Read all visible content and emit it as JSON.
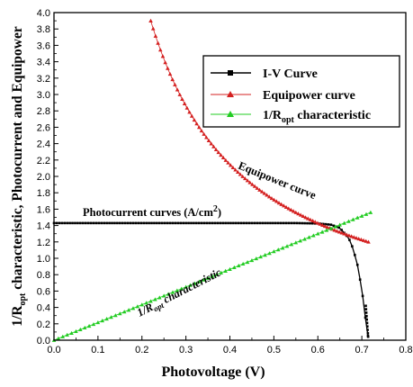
{
  "chart_data": {
    "type": "line",
    "xlabel": "Photovoltage (V)",
    "ylabel": "1/R_opt characteristic, Photocurrent and Equipower",
    "xlim": [
      0.0,
      0.8
    ],
    "ylim": [
      0.0,
      4.0
    ],
    "x_ticks": [
      "0.0",
      "0.1",
      "0.2",
      "0.3",
      "0.4",
      "0.5",
      "0.6",
      "0.7",
      "0.8"
    ],
    "y_ticks": [
      "0.0",
      "0.2",
      "0.4",
      "0.6",
      "0.8",
      "1.0",
      "1.2",
      "1.4",
      "1.6",
      "1.8",
      "2.0",
      "2.2",
      "2.4",
      "2.6",
      "2.8",
      "3.0",
      "3.2",
      "3.4",
      "3.6",
      "3.8",
      "4.0"
    ],
    "grid": false,
    "legend_position": "top-right",
    "legend": {
      "iv": "I-V Curve",
      "equipower": "Equipower curve",
      "ropt_main": "1/R",
      "ropt_sub": "opt",
      "ropt_tail": " characteristic"
    },
    "annotations": {
      "photocurrent": "Photocurrent curves (A/cm",
      "photocurrent_sup": "2",
      "photocurrent_close": ")",
      "equipower": "Equipower curve",
      "ropt": "1/R",
      "ropt_sub": "opt",
      "ropt_tail": " characteristic"
    },
    "series": [
      {
        "name": "I-V Curve",
        "color": "#000000",
        "marker": "square",
        "points": [
          [
            0.0,
            1.43
          ],
          [
            0.1,
            1.43
          ],
          [
            0.2,
            1.43
          ],
          [
            0.3,
            1.43
          ],
          [
            0.4,
            1.43
          ],
          [
            0.5,
            1.43
          ],
          [
            0.55,
            1.43
          ],
          [
            0.6,
            1.425
          ],
          [
            0.63,
            1.41
          ],
          [
            0.65,
            1.37
          ],
          [
            0.67,
            1.25
          ],
          [
            0.68,
            1.12
          ],
          [
            0.69,
            0.92
          ],
          [
            0.7,
            0.62
          ],
          [
            0.705,
            0.42
          ],
          [
            0.71,
            0.18
          ],
          [
            0.715,
            0.02
          ]
        ]
      },
      {
        "name": "Equipower curve",
        "color": "#d42020",
        "marker": "triangle",
        "power": 0.858,
        "x_range": [
          0.22,
          0.715
        ]
      },
      {
        "name": "1/R_opt characteristic",
        "color": "#22cc22",
        "marker": "triangle",
        "points": [
          [
            0.0,
            0.0
          ],
          [
            0.72,
            1.56
          ]
        ]
      }
    ]
  }
}
